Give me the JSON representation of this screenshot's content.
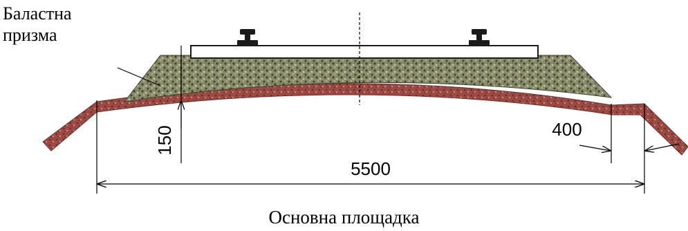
{
  "labels": {
    "ballast_prism_line1": "Баластна",
    "ballast_prism_line2": "призма",
    "subgrade": "Основна площадка"
  },
  "dimensions": {
    "subgrade_width": "5500",
    "shoulder_width": "400",
    "ballast_thickness": "150"
  },
  "colors": {
    "ballast": "#8a8d6a",
    "ballast_dark": "#3f4131",
    "subgrade": "#9c4a44",
    "subgrade_dark": "#6e2a26",
    "sleeper": "#ffffff",
    "rail": "#1a1a1a"
  }
}
